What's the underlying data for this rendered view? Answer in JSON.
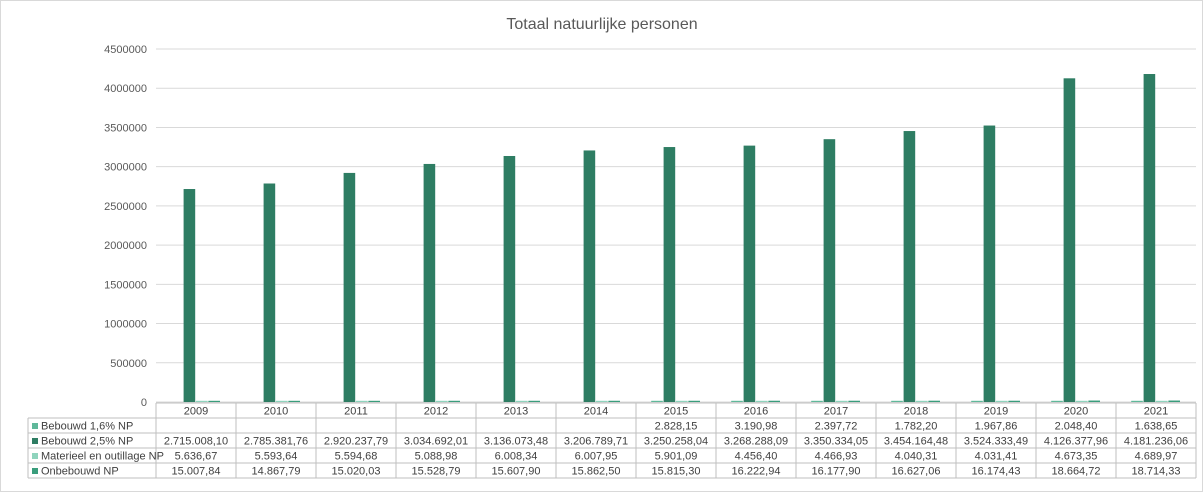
{
  "chart_data": {
    "type": "bar",
    "title": "Totaal natuurlijke personen",
    "categories": [
      "2009",
      "2010",
      "2011",
      "2012",
      "2013",
      "2014",
      "2015",
      "2016",
      "2017",
      "2018",
      "2019",
      "2020",
      "2021"
    ],
    "ylim": [
      0,
      4500000
    ],
    "yticks": [
      "0",
      "500000",
      "1000000",
      "1500000",
      "2000000",
      "2500000",
      "3000000",
      "3500000",
      "4000000",
      "4500000"
    ],
    "grid": true,
    "legend": "data-table-left",
    "series": [
      {
        "name": "Bebouwd 1,6% NP",
        "color": "#5fb89a",
        "values": [
          null,
          null,
          null,
          null,
          null,
          null,
          2828.15,
          3190.98,
          2397.72,
          1782.2,
          1967.86,
          2048.4,
          1638.65
        ],
        "labels": [
          "",
          "",
          "",
          "",
          "",
          "",
          "2.828,15",
          "3.190,98",
          "2.397,72",
          "1.782,20",
          "1.967,86",
          "2.048,40",
          "1.638,65"
        ]
      },
      {
        "name": "Bebouwd 2,5% NP",
        "color": "#2e7d63",
        "values": [
          2715008.1,
          2785381.76,
          2920237.79,
          3034692.01,
          3136073.48,
          3206789.71,
          3250258.04,
          3268288.09,
          3350334.05,
          3454164.48,
          3524333.49,
          4126377.96,
          4181236.06
        ],
        "labels": [
          "2.715.008,10",
          "2.785.381,76",
          "2.920.237,79",
          "3.034.692,01",
          "3.136.073,48",
          "3.206.789,71",
          "3.250.258,04",
          "3.268.288,09",
          "3.350.334,05",
          "3.454.164,48",
          "3.524.333,49",
          "4.126.377,96",
          "4.181.236,06"
        ]
      },
      {
        "name": "Materieel en outillage NP",
        "color": "#8fd4bd",
        "values": [
          5636.67,
          5593.64,
          5594.68,
          5088.98,
          6008.34,
          6007.95,
          5901.09,
          4456.4,
          4466.93,
          4040.31,
          4031.41,
          4673.35,
          4689.97
        ],
        "labels": [
          "5.636,67",
          "5.593,64",
          "5.594,68",
          "5.088,98",
          "6.008,34",
          "6.007,95",
          "5.901,09",
          "4.456,40",
          "4.466,93",
          "4.040,31",
          "4.031,41",
          "4.673,35",
          "4.689,97"
        ]
      },
      {
        "name": "Onbebouwd NP",
        "color": "#3a9d7c",
        "values": [
          15007.84,
          14867.79,
          15020.03,
          15528.79,
          15607.9,
          15862.5,
          15815.3,
          16222.94,
          16177.9,
          16627.06,
          16174.43,
          18664.72,
          18714.33
        ],
        "labels": [
          "15.007,84",
          "14.867,79",
          "15.020,03",
          "15.528,79",
          "15.607,90",
          "15.862,50",
          "15.815,30",
          "16.222,94",
          "16.177,90",
          "16.627,06",
          "16.174,43",
          "18.664,72",
          "18.714,33"
        ]
      }
    ]
  }
}
